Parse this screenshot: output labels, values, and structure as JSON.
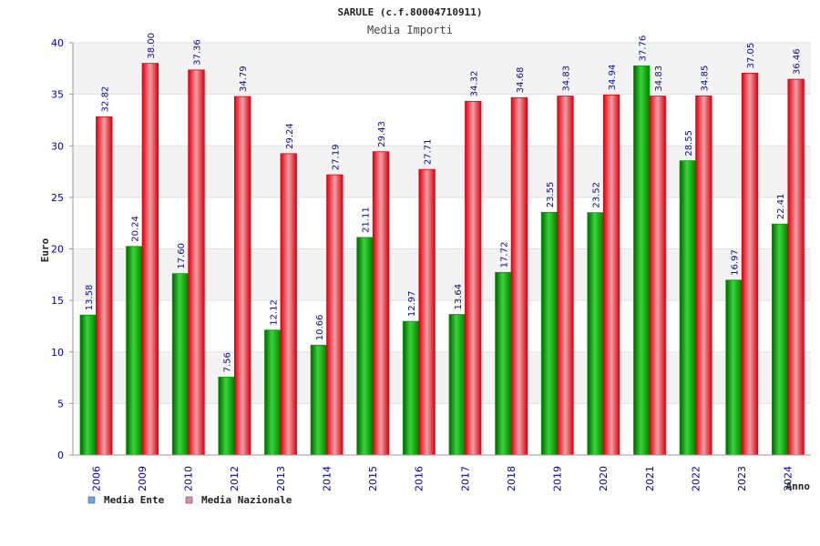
{
  "chart_data": {
    "type": "bar",
    "title": "SARULE (c.f.80004710911)",
    "subtitle": "Media Importi",
    "xlabel": "Anno",
    "ylabel": "Euro",
    "ylim": [
      0,
      40
    ],
    "yticks": [
      "0",
      "5",
      "10",
      "15",
      "20",
      "25",
      "30",
      "35",
      "40"
    ],
    "grid": true,
    "legend_position": "bottom-left",
    "categories": [
      "2006",
      "2009",
      "2010",
      "2012",
      "2013",
      "2014",
      "2015",
      "2016",
      "2017",
      "2018",
      "2019",
      "2020",
      "2021",
      "2022",
      "2023",
      "2024"
    ],
    "series": [
      {
        "name": "Media Ente",
        "color": "#00b000",
        "legend_color": "#6ea6e6",
        "values": [
          13.58,
          20.24,
          17.6,
          7.56,
          12.12,
          10.66,
          21.11,
          12.97,
          13.64,
          17.72,
          23.55,
          23.52,
          37.76,
          28.55,
          16.97,
          22.41
        ],
        "labels": [
          "13.58",
          "20.24",
          "17.60",
          "7.56",
          "12.12",
          "10.66",
          "21.11",
          "12.97",
          "13.64",
          "17.72",
          "23.55",
          "23.52",
          "37.76",
          "28.55",
          "16.97",
          "22.41"
        ]
      },
      {
        "name": "Media Nazionale",
        "color": "#e8101a",
        "legend_color": "#d98bb0",
        "values": [
          32.82,
          38.0,
          37.36,
          34.79,
          29.24,
          27.19,
          29.43,
          27.71,
          34.32,
          34.68,
          34.83,
          34.94,
          34.83,
          34.85,
          37.05,
          36.46
        ],
        "labels": [
          "32.82",
          "38.00",
          "37.36",
          "34.79",
          "29.24",
          "27.19",
          "29.43",
          "27.71",
          "34.32",
          "34.68",
          "34.83",
          "34.94",
          "34.83",
          "34.85",
          "37.05",
          "36.46"
        ]
      }
    ]
  }
}
